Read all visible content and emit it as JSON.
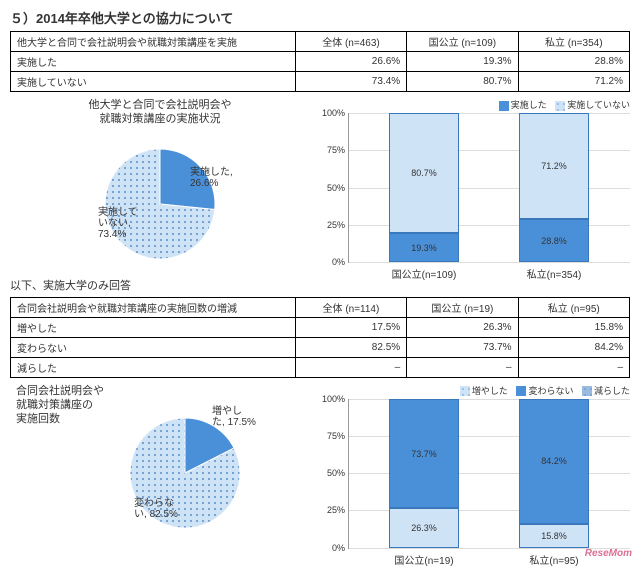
{
  "title": "５）2014年卒他大学との協力について",
  "table1": {
    "header_row": "他大学と合同で会社説明会や就職対策講座を実施",
    "cols": [
      "全体 (n=463)",
      "国公立 (n=109)",
      "私立 (n=354)"
    ],
    "rows": [
      {
        "label": "実施した",
        "vals": [
          "26.6%",
          "19.3%",
          "28.8%"
        ]
      },
      {
        "label": "実施していない",
        "vals": [
          "73.4%",
          "80.7%",
          "71.2%"
        ]
      }
    ]
  },
  "pie1": {
    "title_l1": "他大学と合同で会社説明会や",
    "title_l2": "就職対策講座の実施状況",
    "slices": [
      {
        "label": "実施した,",
        "pct": "26.6%",
        "value": 26.6,
        "color": "#4a90d9"
      },
      {
        "label": "実施して",
        "label2": "いない,",
        "pct": "73.4%",
        "value": 73.4,
        "color": "#cfe3f7",
        "pattern": true
      }
    ]
  },
  "bar1": {
    "legend": [
      {
        "label": "実施した",
        "color": "#4a90d9"
      },
      {
        "label": "実施していない",
        "color": "#cfe3f7",
        "pattern": true
      }
    ],
    "ylim": [
      0,
      100
    ],
    "ystep": 25,
    "cats": [
      "国公立(n=109)",
      "私立(n=354)"
    ],
    "stacks": [
      [
        {
          "v": 19.3,
          "t": "19.3%",
          "color": "#4a90d9"
        },
        {
          "v": 80.7,
          "t": "80.7%",
          "color": "#cfe3f7",
          "pattern": true
        }
      ],
      [
        {
          "v": 28.8,
          "t": "28.8%",
          "color": "#4a90d9"
        },
        {
          "v": 71.2,
          "t": "71.2%",
          "color": "#cfe3f7",
          "pattern": true
        }
      ]
    ]
  },
  "intermission": "以下、実施大学のみ回答",
  "table2": {
    "header_row": "合同会社説明会や就職対策講座の実施回数の増減",
    "cols": [
      "全体 (n=114)",
      "国公立 (n=19)",
      "私立 (n=95)"
    ],
    "rows": [
      {
        "label": "増やした",
        "vals": [
          "17.5%",
          "26.3%",
          "15.8%"
        ]
      },
      {
        "label": "変わらない",
        "vals": [
          "82.5%",
          "73.7%",
          "84.2%"
        ]
      },
      {
        "label": "減らした",
        "vals": [
          "–",
          "–",
          "–"
        ]
      }
    ]
  },
  "pie2": {
    "title_l1": "合同会社説明会や",
    "title_l2": "就職対策講座の",
    "title_l3": "実施回数",
    "slices": [
      {
        "label": "増やし",
        "label2": "た,",
        "pct": "17.5%",
        "value": 17.5,
        "color": "#4a90d9"
      },
      {
        "label": "変わらな",
        "label2": "い,",
        "pct": "82.5%",
        "value": 82.5,
        "color": "#cfe3f7",
        "pattern": true
      }
    ]
  },
  "bar2": {
    "legend": [
      {
        "label": "増やした",
        "color": "#cfe3f7",
        "pattern": true
      },
      {
        "label": "変わらない",
        "color": "#4a90d9"
      },
      {
        "label": "減らした",
        "color": "#9bbbe0",
        "pattern": true
      }
    ],
    "ylim": [
      0,
      100
    ],
    "ystep": 25,
    "cats": [
      "国公立(n=19)",
      "私立(n=95)"
    ],
    "stacks": [
      [
        {
          "v": 26.3,
          "t": "26.3%",
          "color": "#cfe3f7",
          "pattern": true
        },
        {
          "v": 73.7,
          "t": "73.7%",
          "color": "#4a90d9"
        }
      ],
      [
        {
          "v": 15.8,
          "t": "15.8%",
          "color": "#cfe3f7",
          "pattern": true
        },
        {
          "v": 84.2,
          "t": "84.2%",
          "color": "#4a90d9"
        }
      ]
    ]
  },
  "watermark": "ReseMom"
}
